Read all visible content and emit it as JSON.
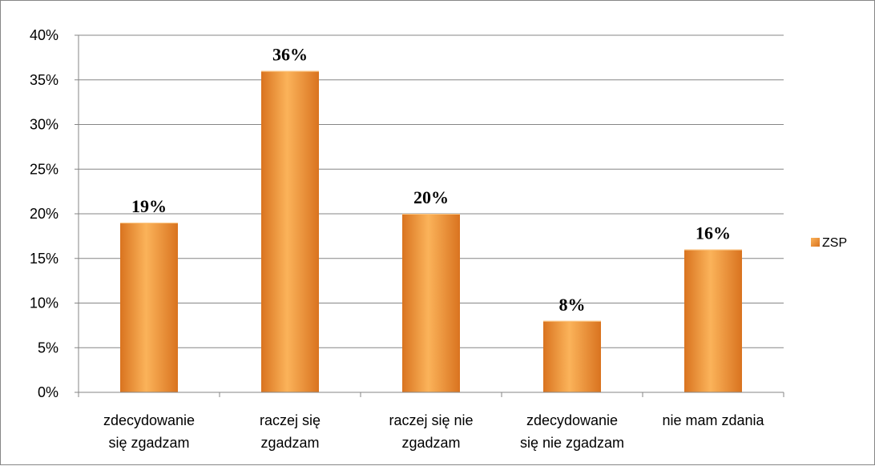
{
  "chart_data": {
    "type": "bar",
    "categories": [
      [
        "zdecydowanie",
        "się zgadzam"
      ],
      [
        "raczej się",
        "zgadzam"
      ],
      [
        "raczej się nie",
        "zgadzam"
      ],
      [
        "zdecydowanie",
        "się nie zgadzam"
      ],
      [
        "nie mam zdania"
      ]
    ],
    "series": [
      {
        "name": "ZSP",
        "values": [
          19,
          36,
          20,
          8,
          16
        ]
      }
    ],
    "data_labels": [
      "19%",
      "36%",
      "20%",
      "8%",
      "16%"
    ],
    "y_ticks": [
      "0%",
      "5%",
      "10%",
      "15%",
      "20%",
      "25%",
      "30%",
      "35%",
      "40%"
    ],
    "ylim": [
      0,
      40
    ],
    "grid": true,
    "legend_position": "right",
    "colors": {
      "bar_light": "#fbb35a",
      "bar_mid": "#f59a2e",
      "bar_dark": "#d9731f",
      "grid": "#868686"
    }
  }
}
